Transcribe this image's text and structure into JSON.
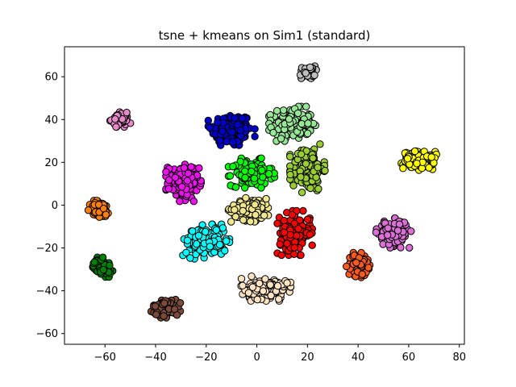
{
  "chart_data": {
    "type": "scatter",
    "title": "tsne + kmeans on Sim1 (standard)",
    "xlabel": "",
    "ylabel": "",
    "xlim": [
      -76,
      82
    ],
    "ylim": [
      -65,
      74
    ],
    "xticks": [
      -60,
      -40,
      -20,
      0,
      20,
      40,
      60,
      80
    ],
    "yticks": [
      -60,
      -40,
      -20,
      0,
      20,
      40,
      60
    ],
    "xtick_labels": [
      "−60",
      "−40",
      "−20",
      "0",
      "20",
      "40",
      "60",
      "80"
    ],
    "ytick_labels": [
      "−60",
      "−40",
      "−20",
      "0",
      "20",
      "40",
      "60"
    ],
    "grid": false,
    "legend": false,
    "marker_edge_color": "#000000",
    "clusters": [
      {
        "color": "#0000cd",
        "center": [
          -10,
          35
        ],
        "spread": [
          8,
          8
        ],
        "count": 170
      },
      {
        "color": "#98e698",
        "center": [
          14,
          38
        ],
        "spread": [
          8,
          7
        ],
        "count": 170
      },
      {
        "color": "#bebebe",
        "center": [
          20,
          62
        ],
        "spread": [
          3,
          3
        ],
        "count": 40
      },
      {
        "color": "#e68ac9",
        "center": [
          -54,
          40
        ],
        "spread": [
          3.5,
          3
        ],
        "count": 60
      },
      {
        "color": "#ffff00",
        "center": [
          64,
          21
        ],
        "spread": [
          6,
          4
        ],
        "count": 130
      },
      {
        "color": "#ee11ee",
        "center": [
          -29,
          11
        ],
        "spread": [
          6,
          8
        ],
        "count": 150
      },
      {
        "color": "#00ff00",
        "center": [
          -2,
          15
        ],
        "spread": [
          8,
          6
        ],
        "count": 140
      },
      {
        "color": "#9acd32",
        "center": [
          20,
          17
        ],
        "spread": [
          6,
          10
        ],
        "count": 150
      },
      {
        "color": "#ff7f0e",
        "center": [
          -62,
          -2
        ],
        "spread": [
          4,
          4
        ],
        "count": 80
      },
      {
        "color": "#f0e68c",
        "center": [
          -2,
          -2
        ],
        "spread": [
          8,
          5
        ],
        "count": 130
      },
      {
        "color": "#ff0000",
        "center": [
          15,
          -13
        ],
        "spread": [
          6,
          9
        ],
        "count": 150
      },
      {
        "color": "#da70d6",
        "center": [
          54,
          -13
        ],
        "spread": [
          6,
          6
        ],
        "count": 120
      },
      {
        "color": "#00ffff",
        "center": [
          -20,
          -17
        ],
        "spread": [
          8,
          7
        ],
        "count": 150
      },
      {
        "color": "#ff5a1f",
        "center": [
          40,
          -28
        ],
        "spread": [
          4,
          5
        ],
        "count": 80
      },
      {
        "color": "#008000",
        "center": [
          -61,
          -29
        ],
        "spread": [
          3.5,
          4
        ],
        "count": 70
      },
      {
        "color": "#ffe4c4",
        "center": [
          3,
          -39
        ],
        "spread": [
          9,
          5
        ],
        "count": 150
      },
      {
        "color": "#7a4b3a",
        "center": [
          -36,
          -48
        ],
        "spread": [
          5,
          4
        ],
        "count": 100
      }
    ]
  }
}
